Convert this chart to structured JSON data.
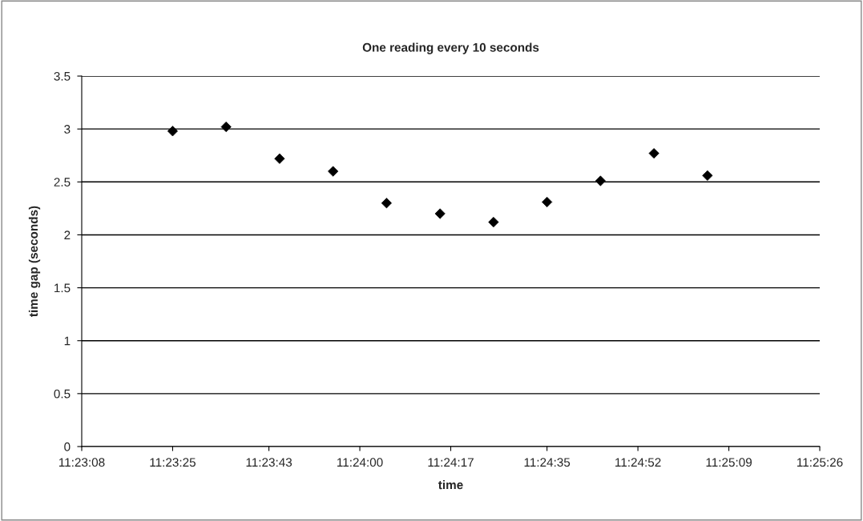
{
  "chart_data": {
    "type": "scatter",
    "title": "One reading every 10 seconds",
    "xlabel": "time",
    "ylabel": "time gap (seconds)",
    "x": [
      11.390278,
      11.393056,
      11.395833,
      11.398611,
      11.401389,
      11.404167,
      11.406944,
      11.409722,
      11.4125,
      11.415278,
      11.418056
    ],
    "series": [
      {
        "color": "#000000",
        "values": [
          2.98,
          3.02,
          2.72,
          2.6,
          2.3,
          2.2,
          2.12,
          2.31,
          2.51,
          2.77,
          2.56
        ]
      }
    ],
    "xlim": [
      11.385556,
      11.423889
    ],
    "xticks": [
      {
        "value": 11.385556,
        "label": "11:23:08"
      },
      {
        "value": 11.390278,
        "label": "11:23:25"
      },
      {
        "value": 11.395278,
        "label": "11:23:43"
      },
      {
        "value": 11.4,
        "label": "11:24:00"
      },
      {
        "value": 11.404722,
        "label": "11:24:17"
      },
      {
        "value": 11.409722,
        "label": "11:24:35"
      },
      {
        "value": 11.414444,
        "label": "11:24:52"
      },
      {
        "value": 11.419167,
        "label": "11:25:09"
      },
      {
        "value": 11.423889,
        "label": "11:25:26"
      }
    ],
    "ylim": [
      0,
      3.5
    ],
    "yticks": [
      0,
      0.5,
      1,
      1.5,
      2,
      2.5,
      3,
      3.5
    ],
    "grid": "y",
    "marker": "diamond",
    "legend": false
  }
}
